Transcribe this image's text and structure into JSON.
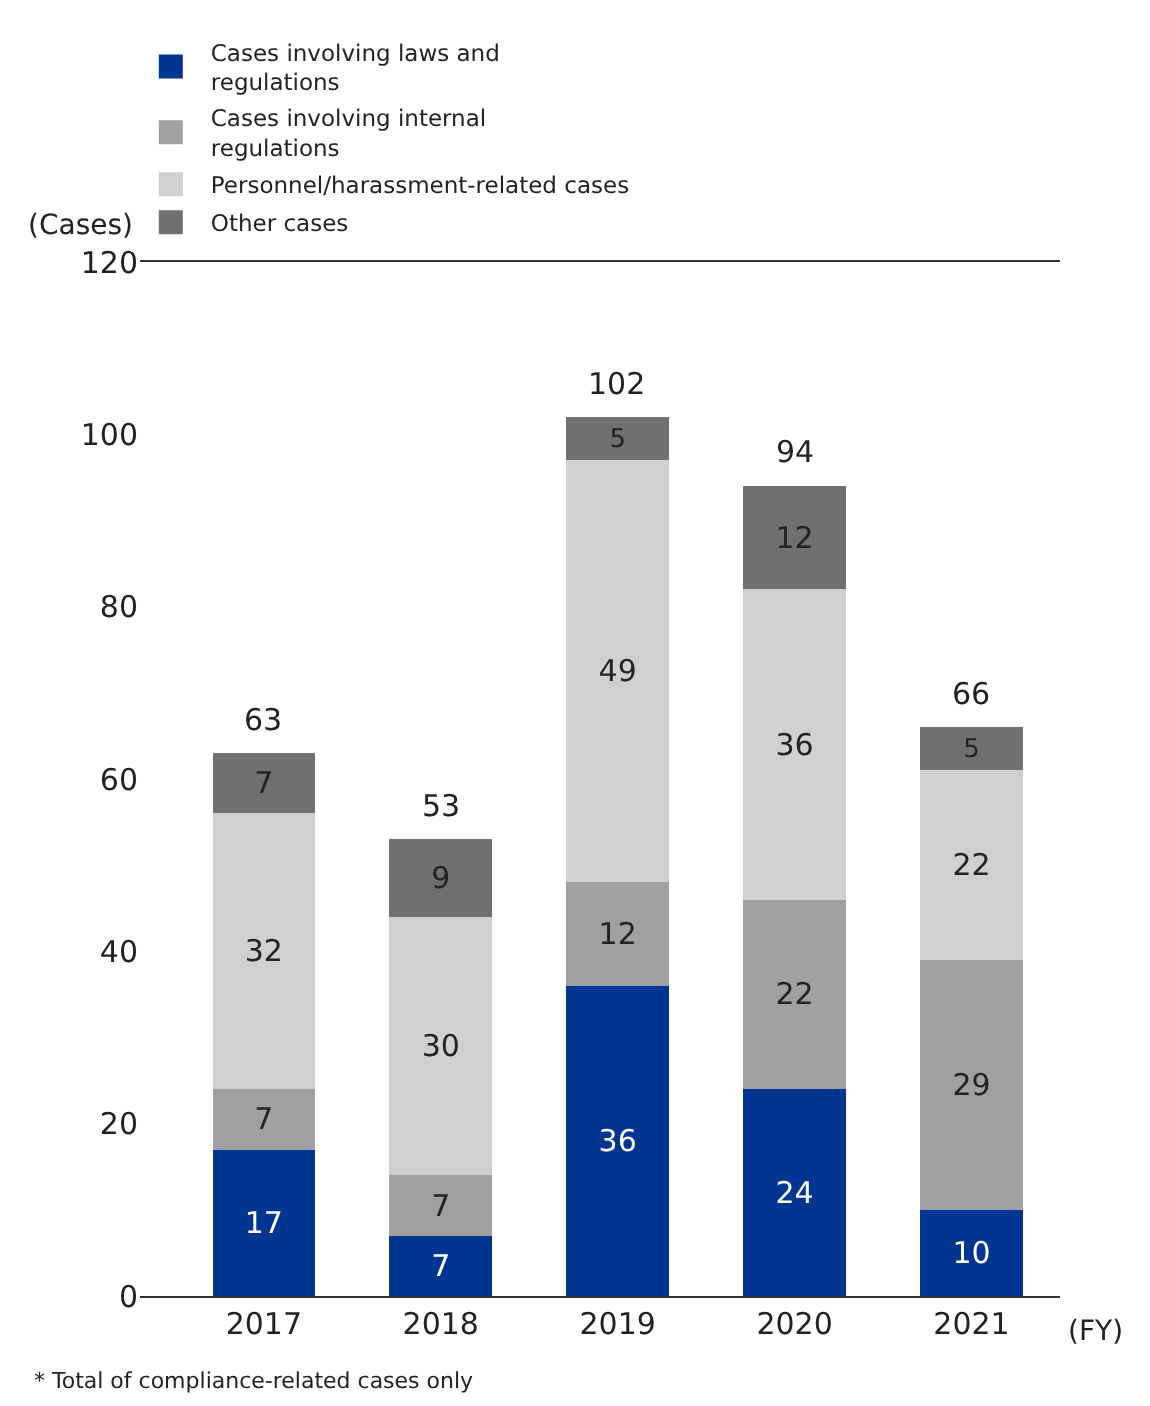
{
  "chart_data": {
    "type": "bar",
    "stacked": true,
    "ylabel": "(Cases)",
    "xlabel": "(FY)",
    "categories": [
      "2017",
      "2018",
      "2019",
      "2020",
      "2021"
    ],
    "series": [
      {
        "name": "Cases involving laws and regulations",
        "color": "#003591",
        "values": [
          17,
          7,
          36,
          24,
          10
        ]
      },
      {
        "name": "Cases involving internal regulations",
        "color": "#a0a0a0",
        "values": [
          7,
          7,
          12,
          22,
          29
        ]
      },
      {
        "name": "Personnel/harassment-related cases",
        "color": "#d0d0d0",
        "values": [
          32,
          30,
          49,
          36,
          22
        ]
      },
      {
        "name": "Other cases",
        "color": "#707070",
        "values": [
          7,
          9,
          5,
          12,
          5
        ]
      }
    ],
    "totals": [
      "63",
      "53",
      "102",
      "94",
      "66"
    ],
    "data_labels": true,
    "ylim": [
      0,
      120
    ],
    "yticks": [
      0,
      20,
      40,
      60,
      80,
      100,
      120
    ],
    "grid": false,
    "legend": "top",
    "annotations": [
      "* Total of compliance-related cases only"
    ]
  }
}
